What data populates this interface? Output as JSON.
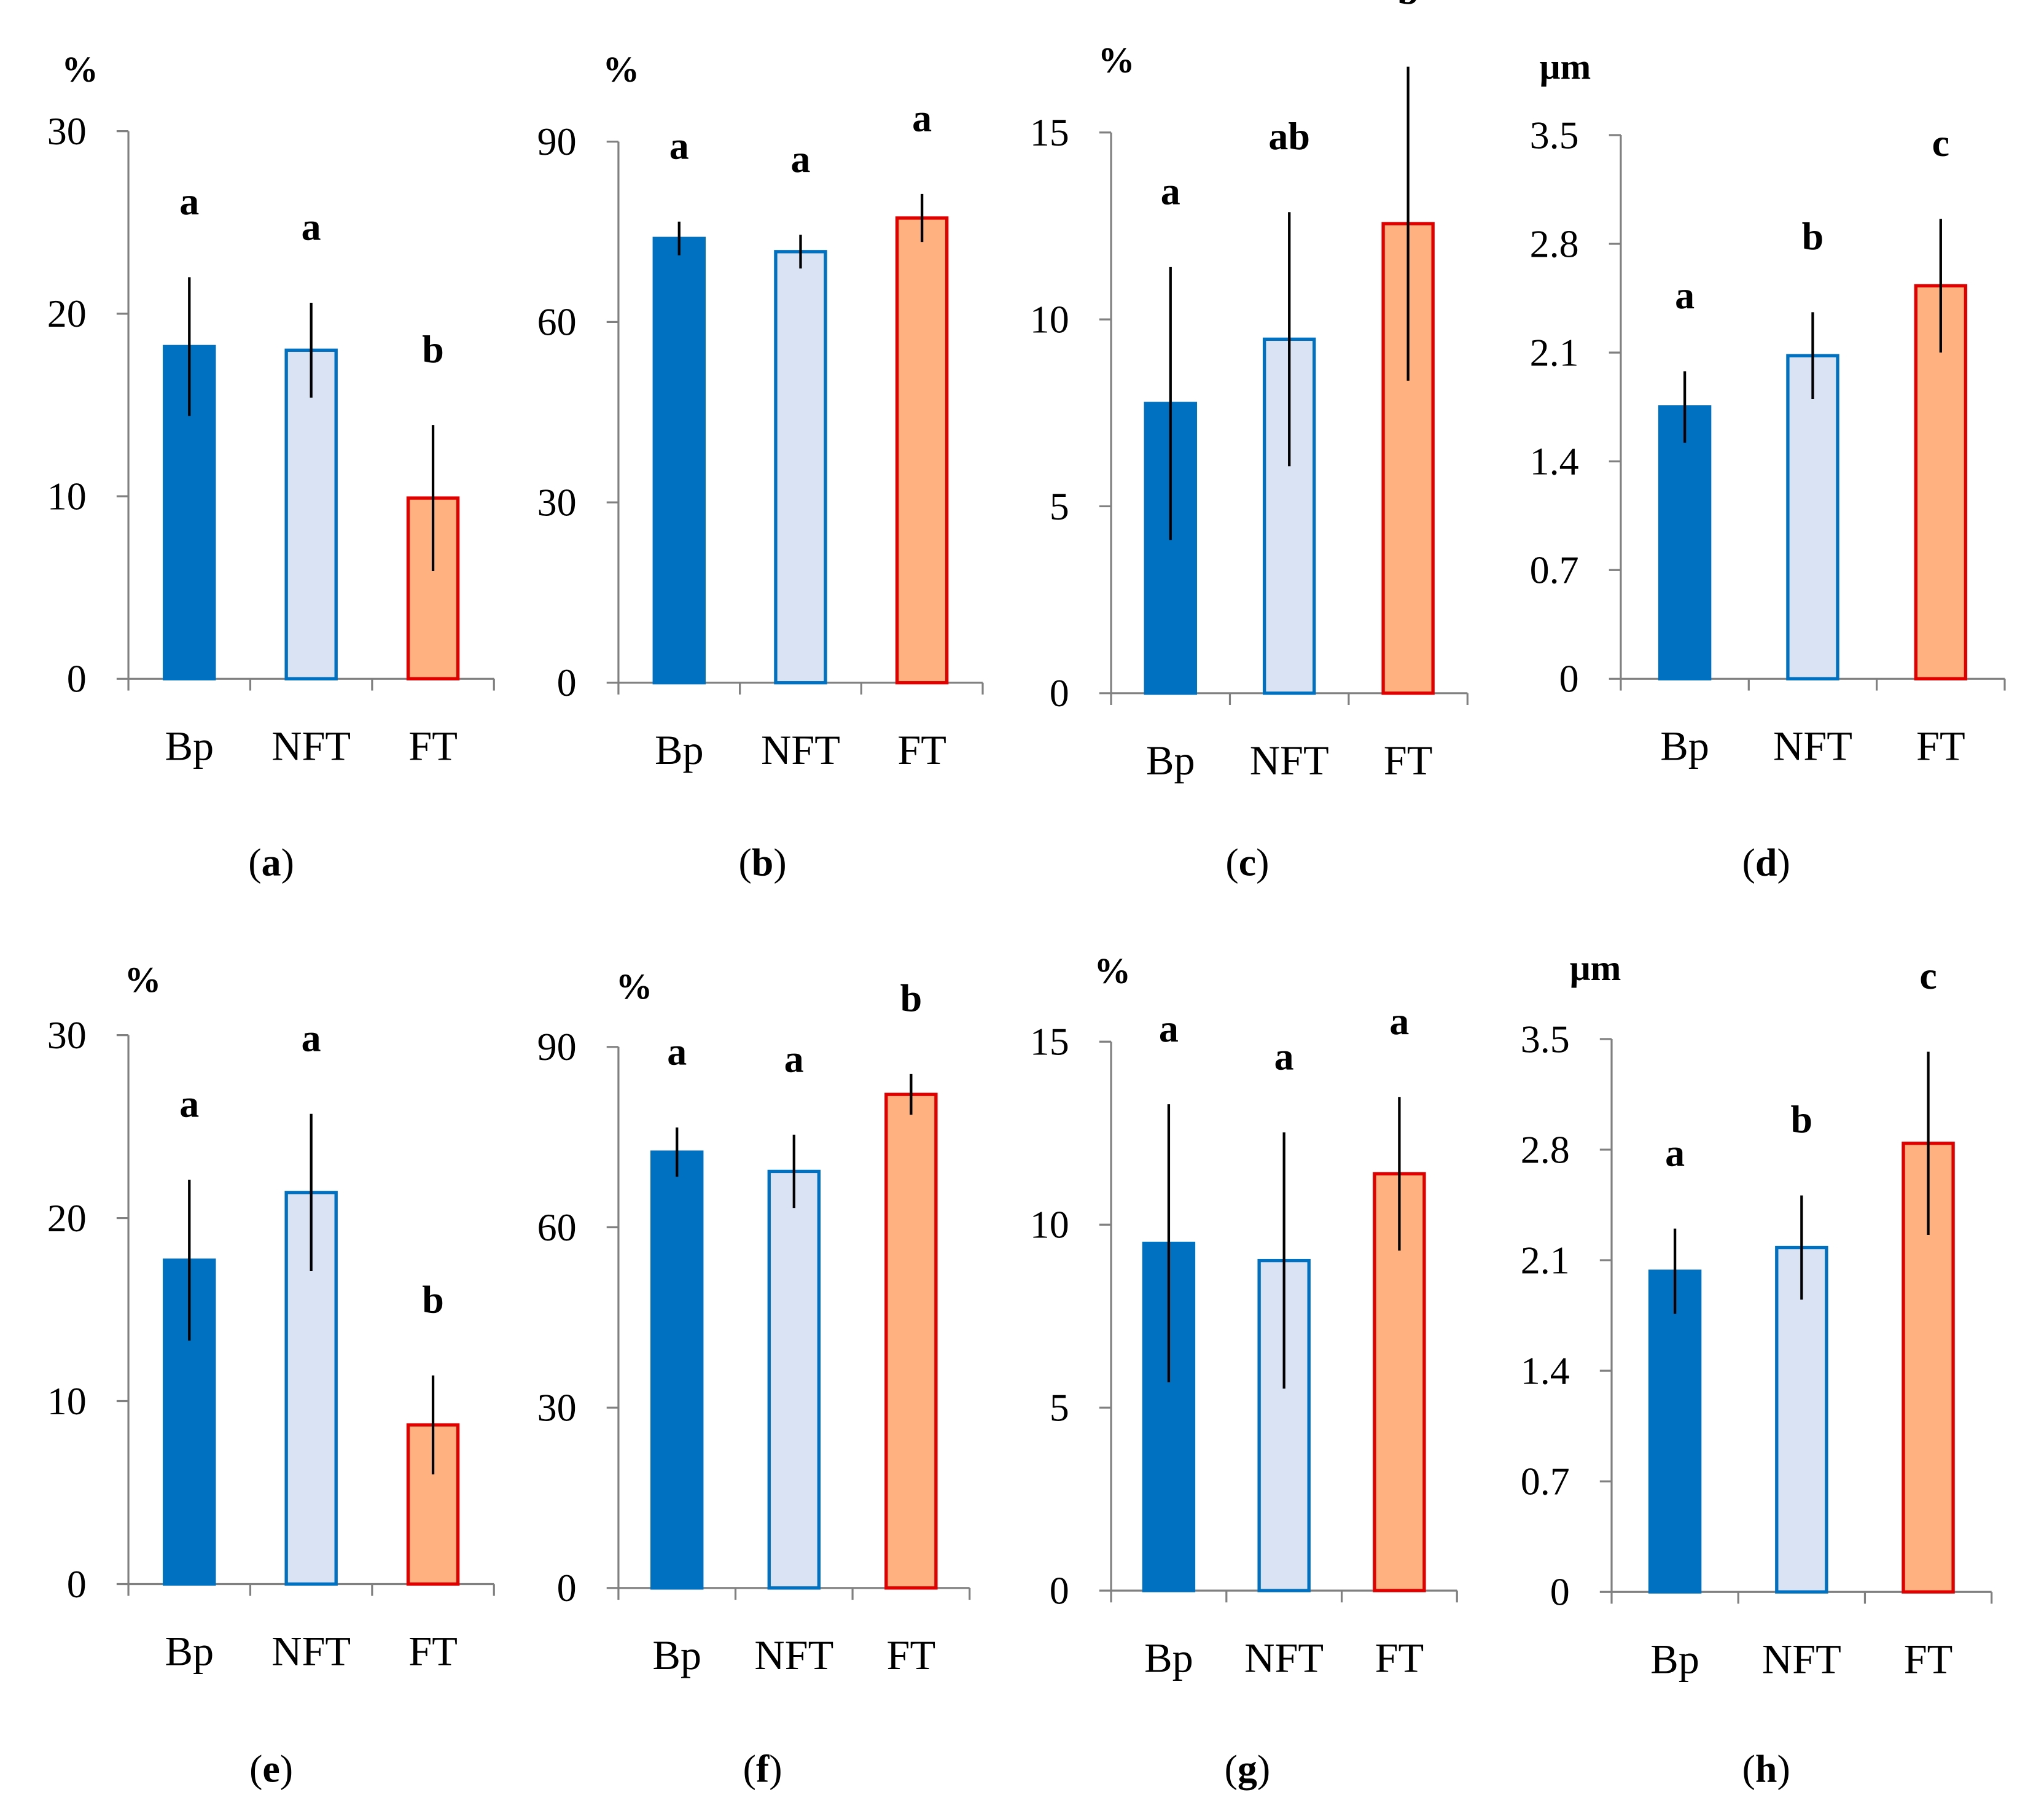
{
  "style": {
    "bp_fill": "#0070C0",
    "bp_stroke": "#0070C0",
    "nft_fill": "#DAE3F3",
    "nft_stroke": "#0070C0",
    "ft_fill": "#FFB27F",
    "ft_stroke": "#E00000",
    "axis": "#808080",
    "error": "#000000"
  },
  "chart_data": [
    {
      "type": "bar",
      "panel": "a",
      "unit": "%",
      "categories": [
        "Bp",
        "NFT",
        "FT"
      ],
      "values": [
        18.2,
        18.0,
        9.9
      ],
      "errors": [
        3.8,
        2.6,
        4.0
      ],
      "letters": [
        "a",
        "a",
        "b"
      ],
      "ylim": [
        0,
        30
      ],
      "yticks": [
        "0",
        "10",
        "20",
        "30"
      ]
    },
    {
      "type": "bar",
      "panel": "b",
      "unit": "%",
      "categories": [
        "Bp",
        "NFT",
        "FT"
      ],
      "values": [
        73.9,
        71.7,
        77.3
      ],
      "errors": [
        2.8,
        2.8,
        4.0
      ],
      "letters": [
        "a",
        "a",
        "a"
      ],
      "ylim": [
        0,
        90
      ],
      "yticks": [
        "0",
        "30",
        "60",
        "90"
      ]
    },
    {
      "type": "bar",
      "panel": "c",
      "unit": "%",
      "categories": [
        "Bp",
        "NFT",
        "FT"
      ],
      "values": [
        7.75,
        9.47,
        12.56
      ],
      "errors": [
        3.65,
        3.4,
        4.2
      ],
      "letters": [
        "a",
        "ab",
        "b"
      ],
      "ylim": [
        0,
        15
      ],
      "yticks": [
        "0",
        "5",
        "10",
        "15"
      ]
    },
    {
      "type": "bar",
      "panel": "d",
      "unit": "μm",
      "categories": [
        "Bp",
        "NFT",
        "FT"
      ],
      "values": [
        1.75,
        2.08,
        2.53
      ],
      "errors": [
        0.23,
        0.28,
        0.43
      ],
      "letters": [
        "a",
        "b",
        "c"
      ],
      "ylim": [
        0,
        3.5
      ],
      "yticks": [
        "0",
        "0.7",
        "1.4",
        "2.1",
        "2.8",
        "3.5"
      ]
    },
    {
      "type": "bar",
      "panel": "e",
      "unit": "%",
      "categories": [
        "Bp",
        "NFT",
        "FT"
      ],
      "values": [
        17.7,
        21.4,
        8.7
      ],
      "errors": [
        4.4,
        4.3,
        2.7
      ],
      "letters": [
        "a",
        "a",
        "b"
      ],
      "ylim": [
        0,
        30
      ],
      "yticks": [
        "0",
        "10",
        "20",
        "30"
      ]
    },
    {
      "type": "bar",
      "panel": "f",
      "unit": "%",
      "categories": [
        "Bp",
        "NFT",
        "FT"
      ],
      "values": [
        72.5,
        69.3,
        82.1
      ],
      "errors": [
        4.1,
        6.1,
        3.4
      ],
      "letters": [
        "a",
        "a",
        "b"
      ],
      "ylim": [
        0,
        90
      ],
      "yticks": [
        "0",
        "30",
        "60",
        "90"
      ]
    },
    {
      "type": "bar",
      "panel": "g",
      "unit": "%",
      "categories": [
        "Bp",
        "NFT",
        "FT"
      ],
      "values": [
        9.49,
        9.02,
        11.39
      ],
      "errors": [
        3.8,
        3.5,
        2.1
      ],
      "letters": [
        "a",
        "a",
        "a"
      ],
      "ylim": [
        0,
        15
      ],
      "yticks": [
        "0",
        "5",
        "10",
        "15"
      ]
    },
    {
      "type": "bar",
      "panel": "h",
      "unit": "μm",
      "categories": [
        "Bp",
        "NFT",
        "FT"
      ],
      "values": [
        2.03,
        2.18,
        2.84
      ],
      "errors": [
        0.27,
        0.33,
        0.58
      ],
      "letters": [
        "a",
        "b",
        "c"
      ],
      "ylim": [
        0,
        3.5
      ],
      "yticks": [
        "0",
        "0.7",
        "1.4",
        "2.1",
        "2.8",
        "3.5"
      ]
    }
  ]
}
